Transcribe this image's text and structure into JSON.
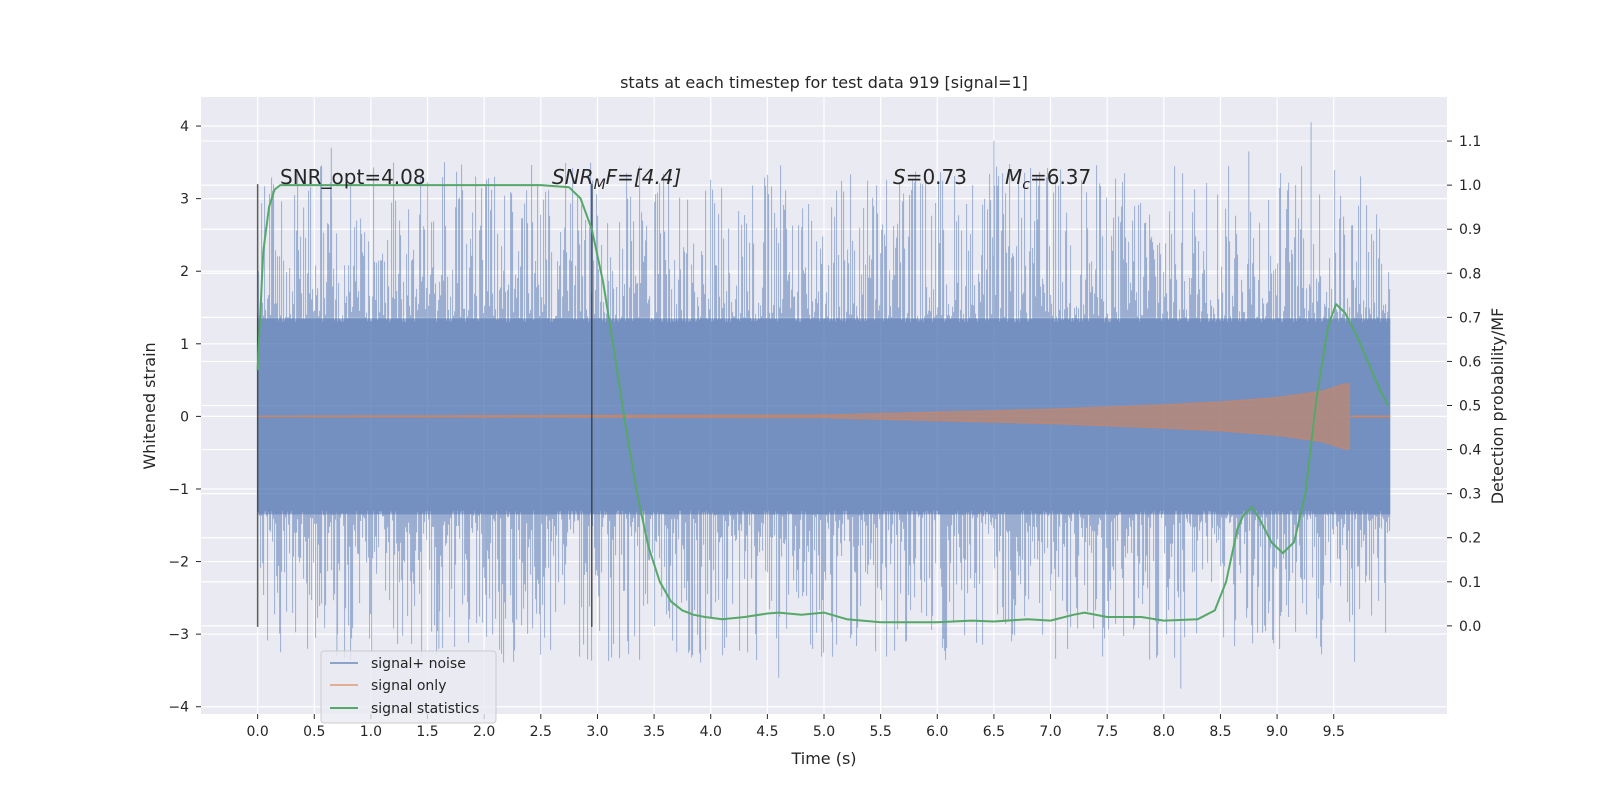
{
  "chart_data": {
    "type": "line",
    "title": "stats at each timestep for test data 919 [signal=1]",
    "xlabel": "Time (s)",
    "ylabel": "Whitened strain",
    "y2label": "Detection probability/MF",
    "xlim": [
      -0.5,
      10.5
    ],
    "ylim": [
      -4.1,
      4.4
    ],
    "y2lim": [
      -0.2,
      1.2
    ],
    "x_ticks": [
      "0.0",
      "0.5",
      "1.0",
      "1.5",
      "2.0",
      "2.5",
      "3.0",
      "3.5",
      "4.0",
      "4.5",
      "5.0",
      "5.5",
      "6.0",
      "6.5",
      "7.0",
      "7.5",
      "8.0",
      "8.5",
      "9.0",
      "9.5"
    ],
    "y_ticks": [
      "4",
      "3",
      "2",
      "1",
      "0",
      "−1",
      "−2",
      "−3",
      "−4"
    ],
    "y2_ticks": [
      "1.1",
      "1.0",
      "0.9",
      "0.8",
      "0.7",
      "0.6",
      "0.5",
      "0.4",
      "0.3",
      "0.2",
      "0.1",
      "0.0"
    ],
    "grid": true,
    "legend_position": "lower-left",
    "annotations": {
      "snr_opt": "SNR_opt=4.08",
      "snr_mf_base": "SNR",
      "snr_mf_sub": "M",
      "snr_mf_rest": "F=[4.4]",
      "s_label": "S",
      "s_value": "=0.73",
      "mc_base": "M",
      "mc_sub": "c",
      "mc_value": "=6.37"
    },
    "vertical_markers": [
      0.0,
      2.95
    ],
    "series": [
      {
        "name": "signal+ noise",
        "color": "#4c72b0",
        "kind": "noise",
        "t_range": [
          0.0,
          10.0
        ],
        "core_band": [
          -1.35,
          1.35
        ],
        "spike_range": [
          -3.75,
          4.05
        ],
        "peaks": [
          [
            0.65,
            3.7
          ],
          [
            1.65,
            3.5
          ],
          [
            6.5,
            3.8
          ],
          [
            8.75,
            3.65
          ],
          [
            9.3,
            4.05
          ],
          [
            4.6,
            -3.6
          ],
          [
            8.15,
            -3.75
          ],
          [
            0.7,
            -3.3
          ],
          [
            1.6,
            -3.2
          ],
          [
            3.7,
            -3.25
          ]
        ]
      },
      {
        "name": "signal only",
        "color": "#dd8452",
        "kind": "chirp",
        "t_end": 9.65,
        "envelope": [
          [
            0.0,
            0.005
          ],
          [
            5.0,
            0.02
          ],
          [
            6.0,
            0.06
          ],
          [
            7.0,
            0.1
          ],
          [
            8.0,
            0.16
          ],
          [
            8.5,
            0.2
          ],
          [
            9.0,
            0.26
          ],
          [
            9.4,
            0.35
          ],
          [
            9.6,
            0.45
          ],
          [
            9.65,
            0.45
          ]
        ]
      },
      {
        "name": "signal statistics",
        "color": "#55a868",
        "kind": "line",
        "axis": "right",
        "x": [
          0.0,
          0.05,
          0.1,
          0.15,
          0.2,
          0.3,
          0.5,
          1.0,
          1.5,
          2.0,
          2.5,
          2.75,
          2.85,
          2.95,
          3.05,
          3.15,
          3.25,
          3.35,
          3.45,
          3.55,
          3.65,
          3.75,
          3.85,
          3.95,
          4.1,
          4.3,
          4.5,
          4.6,
          4.8,
          5.0,
          5.2,
          5.5,
          6.0,
          6.3,
          6.5,
          6.8,
          7.0,
          7.2,
          7.3,
          7.5,
          7.8,
          8.0,
          8.3,
          8.45,
          8.55,
          8.65,
          8.7,
          8.78,
          8.85,
          8.95,
          9.05,
          9.15,
          9.25,
          9.35,
          9.45,
          9.52,
          9.6,
          9.7,
          9.8,
          9.9,
          9.98
        ],
        "y": [
          0.58,
          0.85,
          0.95,
          0.99,
          1.0,
          1.0,
          1.0,
          1.0,
          1.0,
          1.0,
          1.0,
          0.995,
          0.97,
          0.9,
          0.78,
          0.62,
          0.45,
          0.3,
          0.18,
          0.1,
          0.055,
          0.035,
          0.025,
          0.02,
          0.015,
          0.02,
          0.028,
          0.03,
          0.025,
          0.03,
          0.015,
          0.008,
          0.008,
          0.012,
          0.01,
          0.015,
          0.012,
          0.025,
          0.03,
          0.02,
          0.02,
          0.012,
          0.015,
          0.035,
          0.1,
          0.22,
          0.25,
          0.27,
          0.24,
          0.19,
          0.165,
          0.19,
          0.3,
          0.52,
          0.68,
          0.73,
          0.71,
          0.66,
          0.6,
          0.54,
          0.5
        ]
      }
    ]
  }
}
